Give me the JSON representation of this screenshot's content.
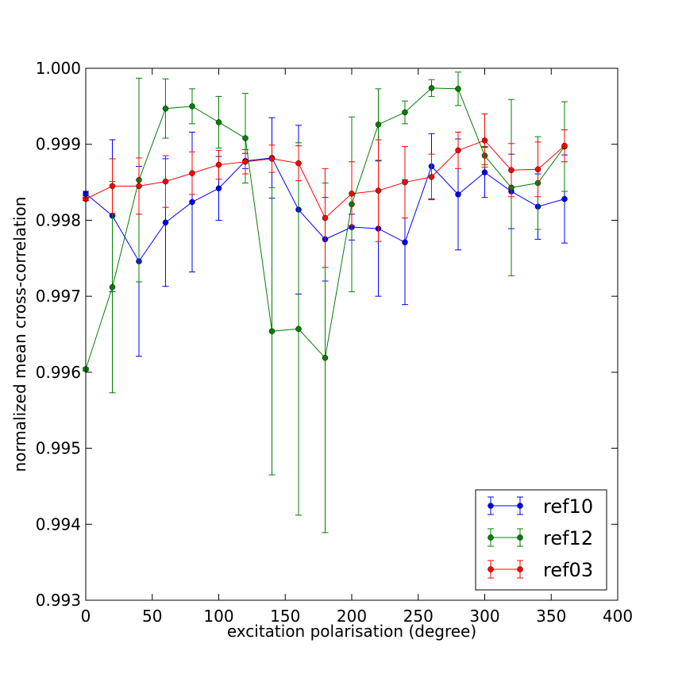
{
  "chart_data": {
    "type": "line",
    "title": "",
    "xlabel": "excitation polarisation (degree)",
    "ylabel": "normalized mean cross-correlation",
    "xlim": [
      0,
      400
    ],
    "ylim": [
      0.993,
      1.0
    ],
    "xticks": [
      0,
      50,
      100,
      150,
      200,
      250,
      300,
      350,
      400
    ],
    "xtick_labels": [
      "0",
      "50",
      "100",
      "150",
      "200",
      "250",
      "300",
      "350",
      "400"
    ],
    "yticks": [
      0.993,
      0.994,
      0.995,
      0.996,
      0.997,
      0.998,
      0.999,
      1.0
    ],
    "ytick_labels": [
      "0.993",
      "0.994",
      "0.995",
      "0.996",
      "0.997",
      "0.998",
      "0.999",
      "1.000"
    ],
    "grid": false,
    "legend_position": "lower-right",
    "x": [
      0,
      20,
      40,
      60,
      80,
      100,
      120,
      140,
      160,
      180,
      200,
      220,
      240,
      260,
      280,
      300,
      320,
      340,
      360
    ],
    "series": [
      {
        "name": "ref10",
        "color": "#0000ff",
        "values": [
          0.99835,
          0.99806,
          0.99746,
          0.99797,
          0.99824,
          0.99842,
          0.99878,
          0.99882,
          0.99814,
          0.99775,
          0.99791,
          0.99789,
          0.99771,
          0.99871,
          0.99834,
          0.99863,
          0.99838,
          0.99818,
          0.99828
        ],
        "errors": [
          3e-05,
          0.001,
          0.00125,
          0.00084,
          0.00092,
          0.00042,
          0.0001,
          0.00053,
          0.00111,
          0.00055,
          0.00017,
          0.00089,
          0.00082,
          0.00043,
          0.00073,
          0.00033,
          0.00049,
          0.00043,
          0.00058
        ]
      },
      {
        "name": "ref12",
        "color": "#008000",
        "values": [
          0.99604,
          0.99712,
          0.99853,
          0.99947,
          0.9995,
          0.99929,
          0.99908,
          0.99654,
          0.99657,
          0.99619,
          0.99821,
          0.99926,
          0.99942,
          0.99974,
          0.99973,
          0.99885,
          0.99843,
          0.99849,
          0.99897
        ],
        "errors": [
          2e-05,
          0.00139,
          0.00134,
          0.00039,
          0.00023,
          0.00034,
          0.00059,
          0.00189,
          0.00245,
          0.0023,
          0.00115,
          0.00047,
          0.00015,
          0.00011,
          0.00022,
          0.00012,
          0.00116,
          0.00061,
          0.00059
        ]
      },
      {
        "name": "ref03",
        "color": "#ff0000",
        "values": [
          0.99828,
          0.99845,
          0.99845,
          0.99851,
          0.99862,
          0.99873,
          0.99877,
          0.99881,
          0.99875,
          0.99803,
          0.99835,
          0.99839,
          0.9985,
          0.99857,
          0.99892,
          0.99905,
          0.99866,
          0.99867,
          0.99898
        ],
        "errors": [
          2e-05,
          0.00036,
          0.00037,
          0.00034,
          0.00028,
          0.00019,
          0.00016,
          0.00018,
          0.00023,
          0.00065,
          0.00042,
          0.00067,
          0.00047,
          0.0003,
          0.00024,
          0.00035,
          0.00035,
          0.00036,
          0.00021
        ]
      }
    ]
  }
}
